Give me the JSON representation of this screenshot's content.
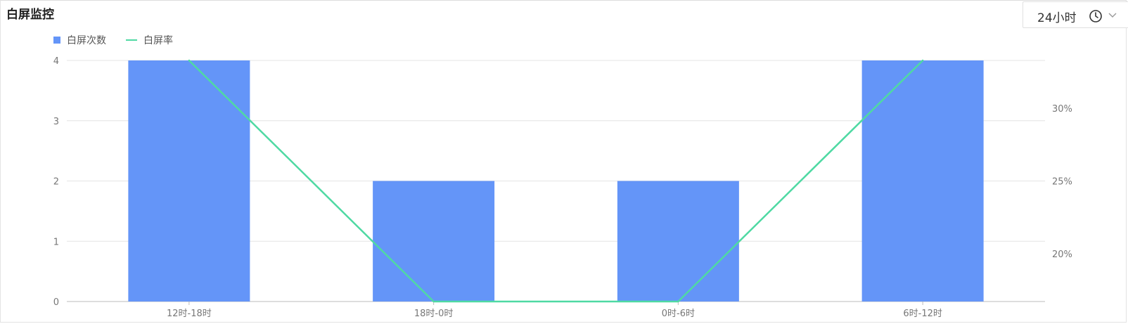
{
  "header": {
    "title": "白屏监控",
    "time_range": "24小时"
  },
  "chart_data": {
    "type": "bar",
    "categories": [
      "12时-18时",
      "18时-0时",
      "0时-6时",
      "6时-12时"
    ],
    "series": [
      {
        "name": "白屏次数",
        "type": "bar",
        "axis": "left",
        "color": "#6495f8",
        "values": [
          4,
          2,
          2,
          4
        ]
      },
      {
        "name": "白屏率",
        "type": "line",
        "axis": "right",
        "color": "#4fd9a3",
        "values": [
          33.3,
          16.7,
          16.7,
          33.3
        ]
      }
    ],
    "y_left": {
      "ticks": [
        0,
        1,
        2,
        3,
        4
      ],
      "ylim": [
        0,
        4
      ]
    },
    "y_right": {
      "ticks": [
        20,
        25,
        30
      ],
      "tick_labels": [
        "20%",
        "25%",
        "30%"
      ],
      "ylim": [
        16.7,
        33.3
      ],
      "unit": "%"
    },
    "grid": true,
    "legend_position": "top-left"
  }
}
